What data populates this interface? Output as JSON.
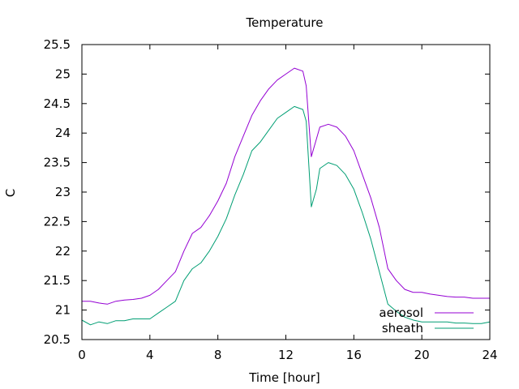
{
  "chart_data": {
    "type": "line",
    "title": "Temperature",
    "xlabel": "Time [hour]",
    "ylabel": "C",
    "xlim": [
      0,
      24
    ],
    "ylim": [
      20.5,
      25.5
    ],
    "xticks": [
      0,
      4,
      8,
      12,
      16,
      20,
      24
    ],
    "yticks": [
      20.5,
      21,
      21.5,
      22,
      22.5,
      23,
      23.5,
      24,
      24.5,
      25,
      25.5
    ],
    "grid": false,
    "legend_position": "bottom-right",
    "series": [
      {
        "name": "aerosol",
        "color": "#9400d3",
        "x": [
          0,
          0.5,
          1,
          1.5,
          2,
          2.5,
          3,
          3.5,
          4,
          4.5,
          5,
          5.5,
          6,
          6.5,
          7,
          7.5,
          8,
          8.5,
          9,
          9.5,
          10,
          10.5,
          11,
          11.5,
          12,
          12.5,
          13,
          13.2,
          13.5,
          13.8,
          14,
          14.5,
          15,
          15.5,
          16,
          16.5,
          17,
          17.5,
          18,
          18.5,
          19,
          19.5,
          20,
          20.5,
          21,
          21.5,
          22,
          22.5,
          23,
          23.5,
          24
        ],
        "y": [
          21.15,
          21.15,
          21.12,
          21.1,
          21.15,
          21.17,
          21.18,
          21.2,
          21.25,
          21.35,
          21.5,
          21.65,
          22.0,
          22.3,
          22.4,
          22.6,
          22.85,
          23.15,
          23.6,
          23.95,
          24.3,
          24.55,
          24.75,
          24.9,
          25.0,
          25.1,
          25.05,
          24.8,
          23.6,
          23.9,
          24.1,
          24.15,
          24.1,
          23.95,
          23.7,
          23.3,
          22.9,
          22.4,
          21.7,
          21.5,
          21.35,
          21.3,
          21.3,
          21.27,
          21.25,
          21.23,
          21.22,
          21.22,
          21.2,
          21.2,
          21.2
        ]
      },
      {
        "name": "sheath",
        "color": "#009e73",
        "x": [
          0,
          0.5,
          1,
          1.5,
          2,
          2.5,
          3,
          3.5,
          4,
          4.5,
          5,
          5.5,
          6,
          6.5,
          7,
          7.5,
          8,
          8.5,
          9,
          9.5,
          10,
          10.5,
          11,
          11.5,
          12,
          12.5,
          13,
          13.2,
          13.5,
          13.8,
          14,
          14.5,
          15,
          15.5,
          16,
          16.5,
          17,
          17.5,
          18,
          18.5,
          19,
          19.5,
          20,
          20.5,
          21,
          21.5,
          22,
          22.5,
          23,
          23.5,
          24
        ],
        "y": [
          20.83,
          20.75,
          20.8,
          20.77,
          20.82,
          20.82,
          20.85,
          20.85,
          20.85,
          20.95,
          21.05,
          21.15,
          21.5,
          21.7,
          21.8,
          22.0,
          22.25,
          22.55,
          22.95,
          23.3,
          23.7,
          23.85,
          24.05,
          24.25,
          24.35,
          24.45,
          24.4,
          24.2,
          22.75,
          23.05,
          23.4,
          23.5,
          23.45,
          23.3,
          23.05,
          22.65,
          22.2,
          21.65,
          21.1,
          20.98,
          20.88,
          20.83,
          20.8,
          20.8,
          20.8,
          20.8,
          20.78,
          20.78,
          20.77,
          20.77,
          20.8
        ]
      }
    ]
  }
}
